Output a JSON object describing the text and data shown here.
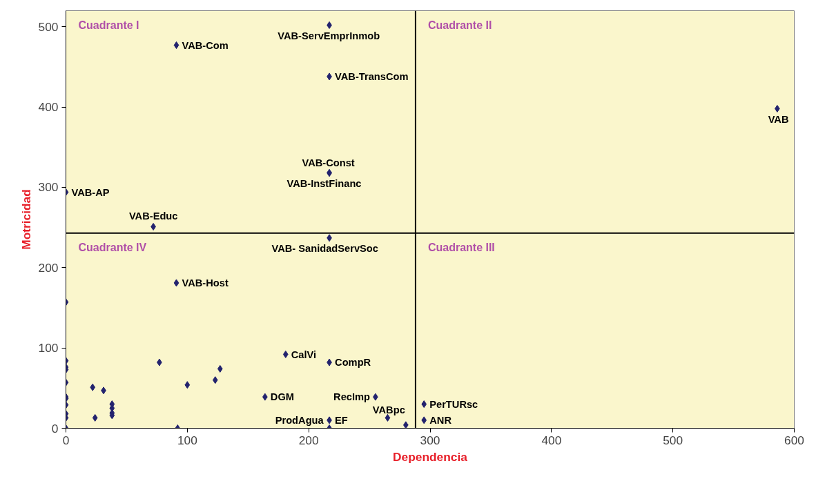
{
  "chart_data": {
    "type": "scatter",
    "xlabel": "Dependencia",
    "ylabel": "Motricidad",
    "xlim": [
      0,
      600
    ],
    "ylim": [
      0,
      520
    ],
    "xticks": [
      0,
      100,
      200,
      300,
      400,
      500,
      600
    ],
    "yticks": [
      0,
      100,
      200,
      300,
      400,
      500
    ],
    "grid": false,
    "marker": "diamond",
    "x": [
      217,
      91,
      217,
      586,
      217,
      217,
      0,
      72,
      217,
      91,
      0,
      0,
      0,
      0,
      0,
      0,
      0,
      0,
      0,
      0,
      0,
      22,
      31,
      24,
      38,
      38,
      38,
      38,
      77,
      100,
      123,
      127,
      92,
      164,
      181,
      217,
      255,
      217,
      217,
      265,
      280,
      295,
      295
    ],
    "series": [
      {
        "color": "#23236e",
        "values": [
          502,
          477,
          438,
          398,
          318,
          318,
          294,
          251,
          237,
          181,
          157,
          84,
          76,
          73,
          57,
          39,
          37,
          29,
          18,
          13,
          0,
          51,
          47,
          13,
          30,
          25,
          19,
          16,
          82,
          54,
          60,
          74,
          0,
          39,
          92,
          82,
          39,
          10,
          0,
          13,
          4,
          30,
          10
        ],
        "value_labels": [
          "VAB-ServEmprInmob",
          "VAB-Com",
          "VAB-TransCom",
          "VAB",
          "VAB-InstFinanc",
          "VAB-Const",
          "VAB-AP",
          "VAB-Educ",
          "VAB- SanidadServSoc",
          "VAB-Host",
          null,
          null,
          null,
          null,
          null,
          null,
          null,
          null,
          null,
          null,
          null,
          null,
          null,
          null,
          null,
          null,
          null,
          null,
          null,
          null,
          null,
          null,
          null,
          "DGM",
          "CalVi",
          "CompR",
          "RecImp",
          "ProdAgua",
          "EF",
          null,
          "VABpc",
          "PerTURsc",
          "ANR"
        ]
      }
    ],
    "ref_lines": [
      {
        "axis": "x",
        "value": 288,
        "color": "#000000"
      },
      {
        "axis": "y",
        "value": 243,
        "color": "#000000"
      }
    ],
    "annotations": [
      "Cuadrante I",
      "Cuadrante II",
      "Cuadrante III",
      "Cuadrante IV"
    ]
  }
}
